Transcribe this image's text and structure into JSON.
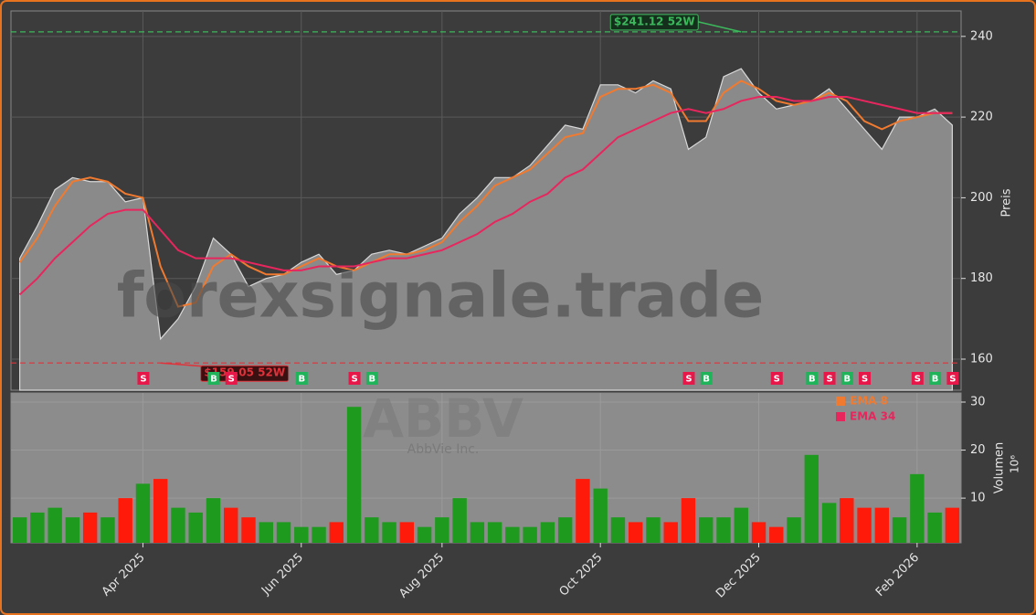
{
  "chart_data": {
    "type": "area",
    "watermark": "forexsignale.trade",
    "symbol": "ABBV",
    "company": "AbbVie Inc.",
    "ylabel": "Preis",
    "y2label": "Volumen",
    "y2exponent": "10⁶",
    "color": "#8a8a8a",
    "grid": true,
    "legend": "upper right",
    "ylim": [
      152.3,
      246.3
    ],
    "yticks": [
      160,
      180,
      200,
      220,
      240
    ],
    "y2lim": [
      0.7,
      31.9
    ],
    "y2ticks": [
      10,
      20,
      30
    ],
    "categories": [
      null,
      null,
      null,
      null,
      null,
      null,
      null,
      "Apr 2025",
      null,
      null,
      null,
      null,
      null,
      null,
      null,
      null,
      "Jun 2025",
      null,
      null,
      null,
      null,
      null,
      null,
      null,
      "Aug 2025",
      null,
      null,
      null,
      null,
      null,
      null,
      null,
      null,
      "Oct 2025",
      null,
      null,
      null,
      null,
      null,
      null,
      null,
      null,
      "Dec 2025",
      null,
      null,
      null,
      null,
      null,
      null,
      null,
      null,
      "Feb 2026",
      null,
      null
    ],
    "values": [
      185,
      193,
      202,
      205,
      204,
      204,
      199,
      200,
      165,
      170,
      178,
      190,
      186,
      178,
      180,
      181,
      184,
      186,
      181,
      182,
      186,
      187,
      186,
      188,
      190,
      196,
      200,
      205,
      205,
      208,
      213,
      218,
      217,
      228,
      228,
      226,
      229,
      227,
      212,
      215,
      230,
      232,
      226,
      222,
      223,
      224,
      227,
      222,
      217,
      212,
      220,
      220,
      222,
      218
    ],
    "series": [
      {
        "name": "EMA 8",
        "color": "#f07a30",
        "values": [
          184,
          190,
          198,
          204,
          205,
          204,
          201,
          200,
          183,
          173,
          174,
          183,
          186,
          183,
          181,
          181,
          183,
          185,
          183,
          182,
          184,
          186,
          186,
          187,
          189,
          194,
          198,
          203,
          205,
          207,
          211,
          215,
          216,
          225,
          227,
          227,
          228,
          226,
          219,
          219,
          226,
          229,
          227,
          224,
          223,
          224,
          226,
          224,
          219,
          217,
          219,
          220,
          221,
          221
        ]
      },
      {
        "name": "EMA 34",
        "color": "#e8265e",
        "values": [
          176,
          180,
          185,
          189,
          193,
          196,
          197,
          197,
          192,
          187,
          185,
          185,
          185,
          184,
          183,
          182,
          182,
          183,
          183,
          183,
          184,
          185,
          185,
          186,
          187,
          189,
          191,
          194,
          196,
          199,
          201,
          205,
          207,
          211,
          215,
          217,
          219,
          221,
          222,
          221,
          222,
          224,
          225,
          225,
          224,
          224,
          225,
          225,
          224,
          223,
          222,
          221,
          221,
          221
        ]
      }
    ],
    "volume": {
      "axis": "y2",
      "up_color": "#1e9a1e",
      "down_color": "#ff1a0a",
      "values": [
        6,
        7,
        8,
        6,
        7,
        6,
        10,
        13,
        14,
        8,
        7,
        10,
        8,
        6,
        5,
        5,
        4,
        4,
        5,
        29,
        6,
        5,
        5,
        4,
        6,
        10,
        5,
        5,
        4,
        4,
        5,
        6,
        14,
        12,
        6,
        5,
        6,
        5,
        10,
        6,
        6,
        8,
        5,
        4,
        6,
        19,
        9,
        10,
        8,
        8,
        6,
        15,
        7,
        8
      ]
    },
    "signals": [
      null,
      null,
      null,
      null,
      null,
      null,
      null,
      "S",
      null,
      null,
      null,
      "B",
      "S",
      null,
      null,
      null,
      "B",
      null,
      null,
      "S",
      "B",
      null,
      null,
      null,
      null,
      null,
      null,
      null,
      null,
      null,
      null,
      null,
      null,
      null,
      null,
      null,
      null,
      null,
      "S",
      "B",
      null,
      null,
      null,
      "S",
      null,
      "B",
      "S",
      "B",
      "S",
      null,
      null,
      "S",
      "B",
      "S"
    ],
    "high": {
      "value": 241.12,
      "label": "$241.12 52W",
      "color": "#3cb85c"
    },
    "low": {
      "value": 159.05,
      "label": "$159.05 52W",
      "color": "#e0323a"
    }
  }
}
